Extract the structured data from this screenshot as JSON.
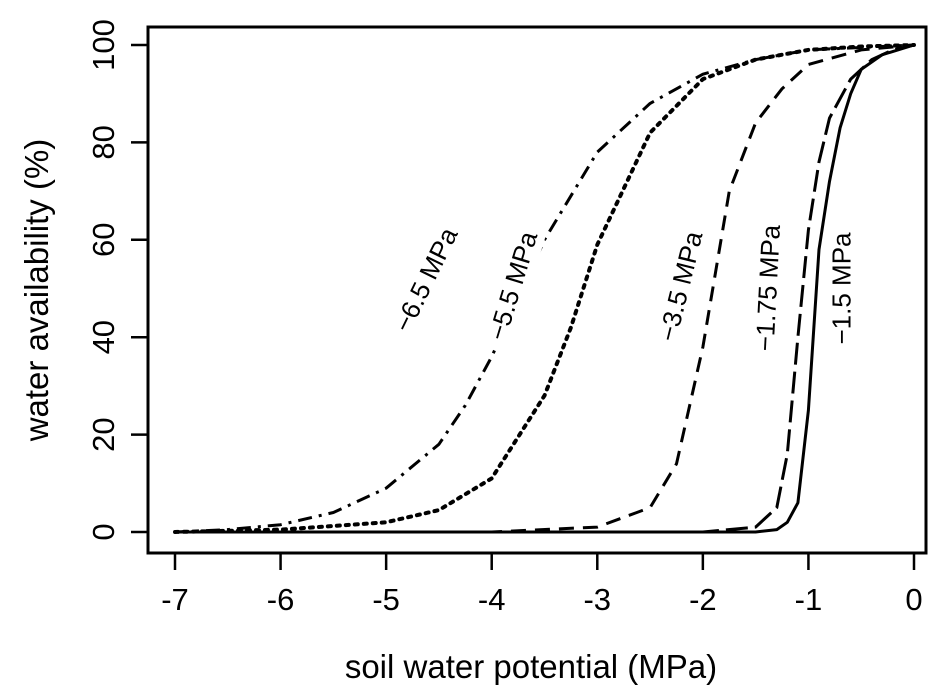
{
  "chart_data": {
    "type": "line",
    "title": "",
    "xlabel": "soil water potential (MPa)",
    "ylabel": "water availability (%)",
    "xlim": [
      -7,
      0
    ],
    "ylim": [
      0,
      100
    ],
    "xticks": [
      -7,
      -6,
      -5,
      -4,
      -3,
      -2,
      -1,
      0
    ],
    "xtick_labels": [
      "-7",
      "-6",
      "-5",
      "-4",
      "-3",
      "-2",
      "-1",
      "0"
    ],
    "yticks": [
      0,
      20,
      40,
      60,
      80,
      100
    ],
    "ytick_labels": [
      "0",
      "20",
      "40",
      "60",
      "80",
      "100"
    ],
    "grid": false,
    "legend": "none",
    "series": [
      {
        "name": "−6.5 MPa",
        "style": "dash-dot",
        "x": [
          -7,
          -6.5,
          -6,
          -5.5,
          -5,
          -4.5,
          -4.25,
          -4,
          -3.5,
          -3,
          -2.5,
          -2,
          -1.5,
          -1,
          0
        ],
        "y": [
          0,
          0.5,
          1.5,
          4,
          9,
          18,
          26,
          36,
          60,
          78,
          88,
          94,
          97,
          99,
          100
        ]
      },
      {
        "name": "−5.5 MPa",
        "style": "dotted",
        "x": [
          -7,
          -6,
          -5,
          -4.5,
          -4,
          -3.5,
          -3.25,
          -3,
          -2.5,
          -2,
          -1.5,
          -1,
          -0.5,
          0
        ],
        "y": [
          0,
          0.5,
          2,
          4.5,
          11,
          28,
          42,
          59,
          82,
          93,
          97,
          99,
          99.7,
          100
        ]
      },
      {
        "name": "−3.5 MPa",
        "style": "dashed",
        "x": [
          -7,
          -4,
          -3,
          -2.5,
          -2.25,
          -2,
          -1.75,
          -1.5,
          -1.25,
          -1,
          -0.5,
          0
        ],
        "y": [
          0,
          0,
          1,
          5,
          14,
          38,
          70,
          84,
          91,
          96,
          99,
          100
        ]
      },
      {
        "name": "−1.75 MPa",
        "style": "long-dash",
        "x": [
          -7,
          -2,
          -1.5,
          -1.3,
          -1.2,
          -1.1,
          -1,
          -0.9,
          -0.8,
          -0.6,
          -0.4,
          -0.2,
          0
        ],
        "y": [
          0,
          0,
          1,
          5,
          16,
          40,
          62,
          76,
          85,
          93,
          97,
          99,
          100
        ]
      },
      {
        "name": "−1.5 MPa",
        "style": "solid",
        "x": [
          -7,
          -1.5,
          -1.3,
          -1.2,
          -1.1,
          -1,
          -0.9,
          -0.8,
          -0.7,
          -0.6,
          -0.5,
          -0.3,
          0
        ],
        "y": [
          0,
          0,
          0.5,
          2,
          6,
          25,
          58,
          72,
          83,
          90,
          95,
          98,
          100
        ]
      }
    ],
    "annotations": [
      {
        "text": "−6.5 MPa",
        "x": -4.55,
        "y": 51,
        "angle": -64
      },
      {
        "text": "−5.5 MPa",
        "x": -3.72,
        "y": 50,
        "angle": -73
      },
      {
        "text": "−3.5 MPa",
        "x": -2.13,
        "y": 50,
        "angle": -76
      },
      {
        "text": "−1.75 MPa",
        "x": -1.3,
        "y": 50,
        "angle": -87
      },
      {
        "text": "−1.5 MPa",
        "x": -0.6,
        "y": 50,
        "angle": -90
      }
    ]
  }
}
